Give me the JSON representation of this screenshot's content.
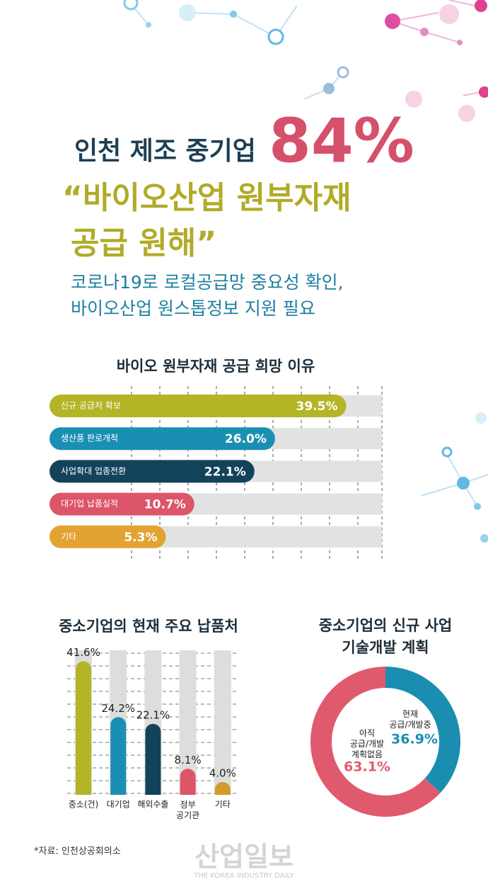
{
  "header": {
    "title": "인천 제조 중기업",
    "highlight": "84%",
    "quote_line1": "“바이오산업 원부자재",
    "quote_line2": "공급 원해”",
    "subtitle_line1": "코로나19로 로컬공급망 중요성 확인,",
    "subtitle_line2": "바이오산업 원스톱정보 지원 필요"
  },
  "chart_data": [
    {
      "type": "hbar",
      "title": "바이오 원부자재 공급 희망 이유",
      "categories": [
        "신규 공급처 확보",
        "생산품 판로개척",
        "사업확대 업종전환",
        "대기업 납품실적",
        "기타"
      ],
      "values": [
        39.5,
        26.0,
        22.1,
        10.7,
        5.3
      ],
      "value_labels": [
        "39.5%",
        "26.0%",
        "22.1%",
        "10.7%",
        "5.3%"
      ],
      "colors": [
        "#b3b526",
        "#1b8fb3",
        "#13435b",
        "#dd5569",
        "#e3a332"
      ],
      "xlim": [
        0,
        46
      ]
    },
    {
      "type": "vbar",
      "title": "중소기업의 현재 주요 납품처",
      "categories": [
        "중소(건)",
        "대기업",
        "해외수출",
        "정부\n공기관",
        "기타"
      ],
      "values": [
        41.6,
        24.2,
        22.1,
        8.1,
        4.0
      ],
      "value_labels": [
        "41.6%",
        "24.2%",
        "22.1%",
        "8.1%",
        "4.0%"
      ],
      "colors": [
        "#b3b526",
        "#1b8fb3",
        "#13435b",
        "#dd5569",
        "#d49a2c"
      ],
      "ylim": [
        0,
        45
      ]
    },
    {
      "type": "donut",
      "title": "중소기업의 신규 사업\n기술개발 계획",
      "categories": [
        "현재\n공급/개발중",
        "아직\n공급/개발\n계획없음"
      ],
      "values": [
        36.9,
        63.1
      ],
      "value_labels": [
        "36.9%",
        "63.1%"
      ],
      "colors": [
        "#1a8db1",
        "#e05a6e"
      ]
    }
  ],
  "source": "*자료: 인천상공회의소",
  "watermark": "산업일보",
  "watermark_sub": "THE KOREA INDUSTRY DAILY"
}
